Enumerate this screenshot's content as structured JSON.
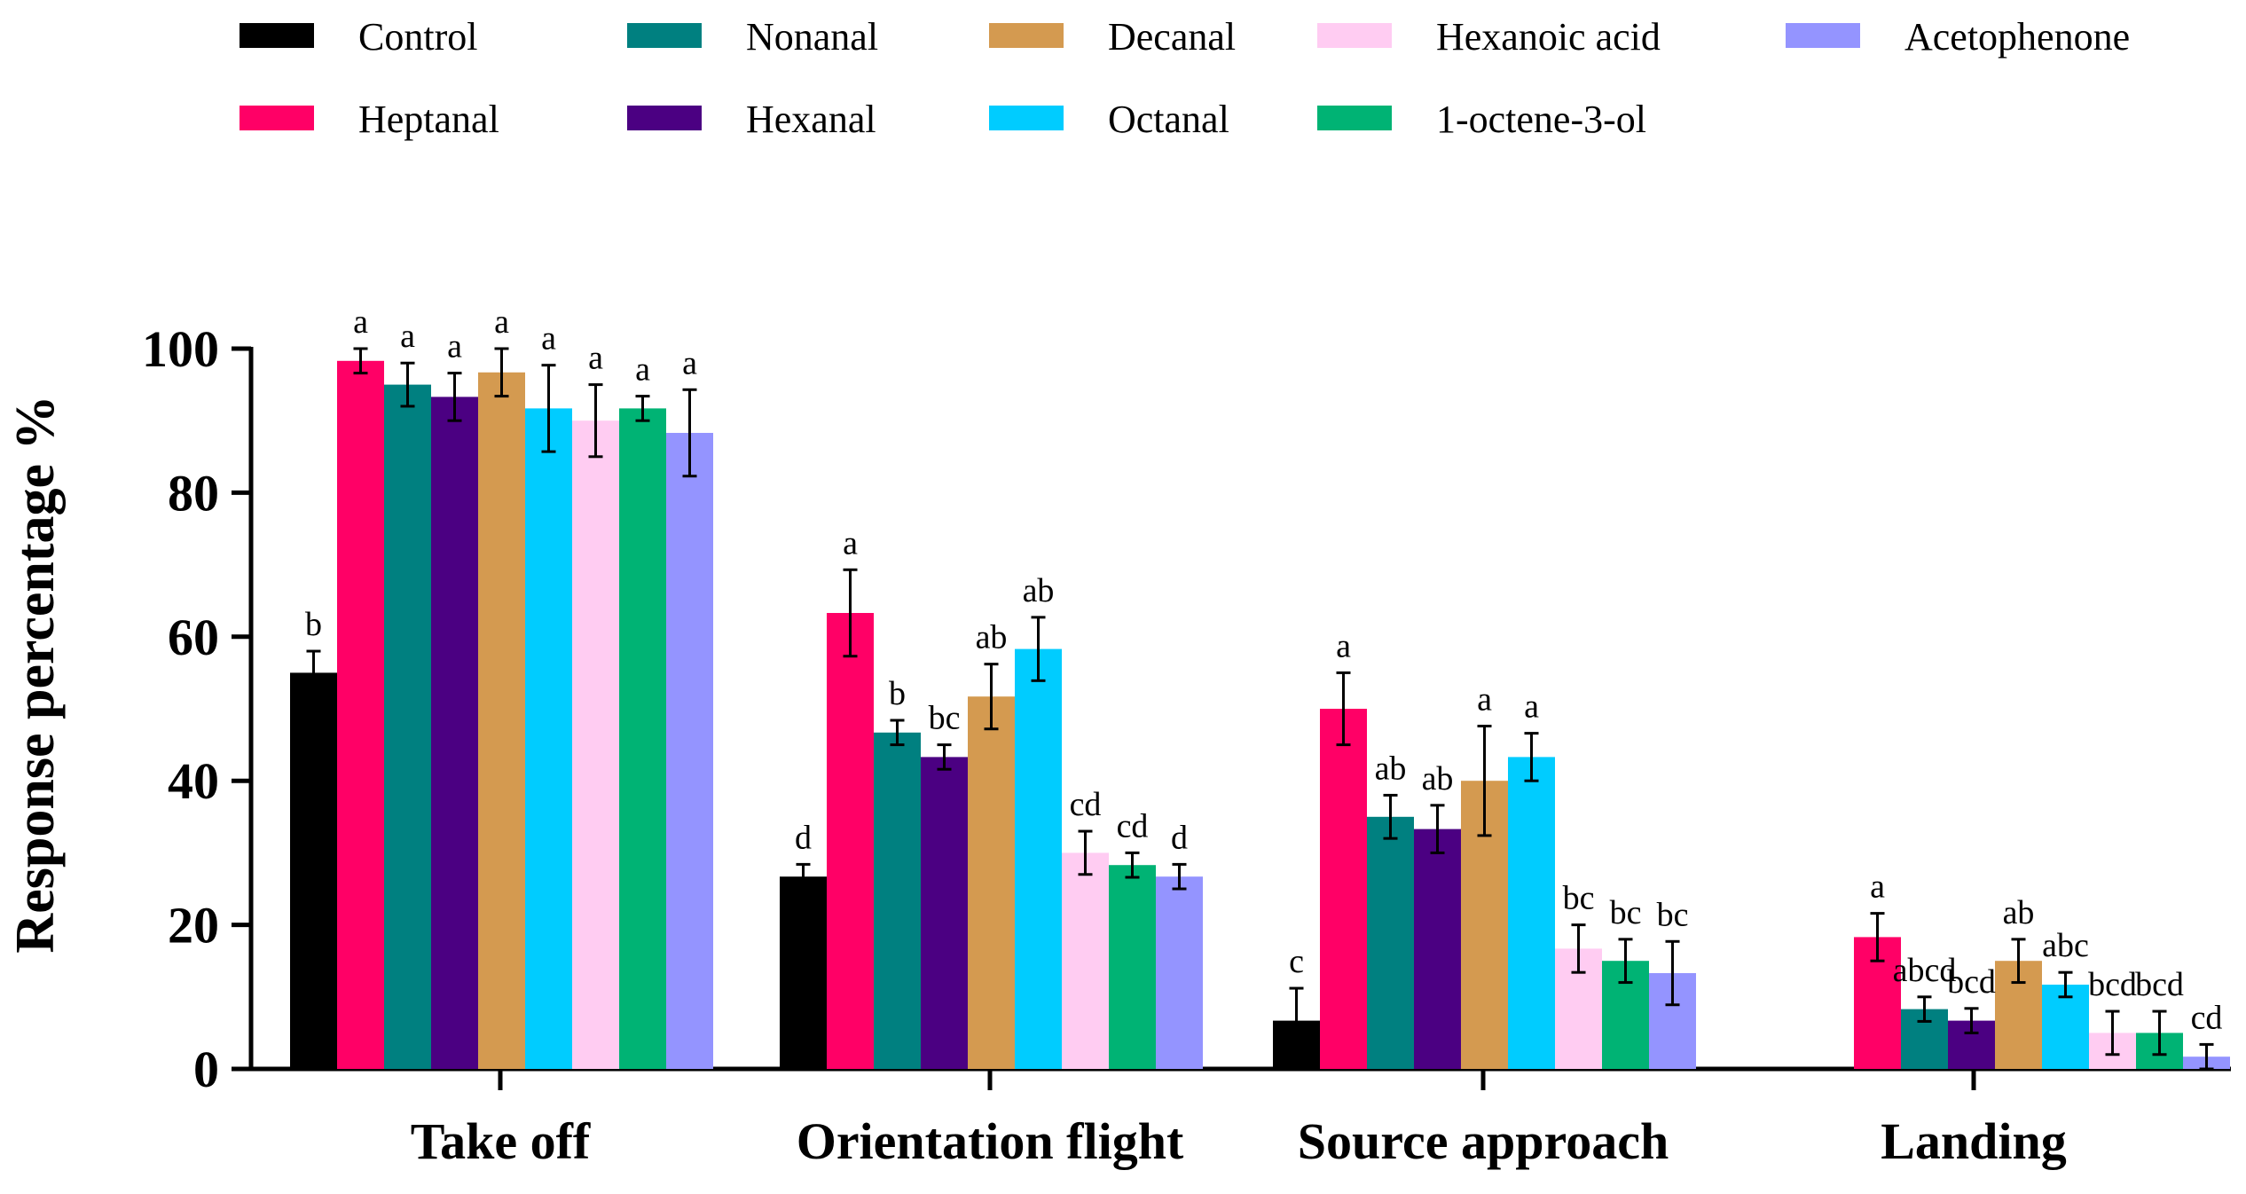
{
  "chart_data": {
    "type": "bar",
    "title": "",
    "xlabel": "",
    "ylabel": "Response percentage %",
    "ylim": [
      0,
      100
    ],
    "yticks": [
      0,
      20,
      40,
      60,
      80,
      100
    ],
    "grid": false,
    "legend_position": "top",
    "categories": [
      "Take off",
      "Orientation flight",
      "Source approach",
      "Landing"
    ],
    "series": [
      {
        "name": "Control",
        "color": "#000000",
        "values": [
          55,
          26.7,
          6.7,
          0
        ],
        "errors": [
          3,
          1.7,
          4.5,
          0
        ],
        "labels": [
          "b",
          "d",
          "c",
          ""
        ]
      },
      {
        "name": "Heptanal",
        "color": "#FF0066",
        "values": [
          98.3,
          63.3,
          50,
          18.3
        ],
        "errors": [
          1.7,
          6,
          5,
          3.3
        ],
        "labels": [
          "a",
          "a",
          "a",
          "a"
        ]
      },
      {
        "name": "Nonanal",
        "color": "#008080",
        "values": [
          95,
          46.7,
          35,
          8.3
        ],
        "errors": [
          3,
          1.7,
          3,
          1.7
        ],
        "labels": [
          "a",
          "b",
          "ab",
          "abcd"
        ]
      },
      {
        "name": "Hexanal",
        "color": "#4B0082",
        "values": [
          93.3,
          43.3,
          33.3,
          6.7
        ],
        "errors": [
          3.3,
          1.7,
          3.3,
          1.7
        ],
        "labels": [
          "a",
          "bc",
          "ab",
          "bcd"
        ]
      },
      {
        "name": "Decanal",
        "color": "#D49A50",
        "values": [
          96.7,
          51.7,
          40,
          15
        ],
        "errors": [
          3.3,
          4.5,
          7.6,
          3
        ],
        "labels": [
          "a",
          "ab",
          "a",
          "ab"
        ]
      },
      {
        "name": "Octanal",
        "color": "#00CCFF",
        "values": [
          91.7,
          58.3,
          43.3,
          11.7
        ],
        "errors": [
          6,
          4.4,
          3.3,
          1.7
        ],
        "labels": [
          "a",
          "ab",
          "a",
          "abc"
        ]
      },
      {
        "name": "Hexanoic acid",
        "color": "#FFCCF2",
        "values": [
          90,
          30,
          16.7,
          5
        ],
        "errors": [
          5,
          3,
          3.3,
          3
        ],
        "labels": [
          "a",
          "cd",
          "bc",
          "bcd"
        ]
      },
      {
        "name": "1-octene-3-ol",
        "color": "#00B374",
        "values": [
          91.7,
          28.3,
          15,
          5
        ],
        "errors": [
          1.7,
          1.7,
          3,
          3
        ],
        "labels": [
          "a",
          "cd",
          "bc",
          "bcd"
        ]
      },
      {
        "name": "Acetophenone",
        "color": "#9494FF",
        "values": [
          88.3,
          26.7,
          13.3,
          1.7
        ],
        "errors": [
          6,
          1.7,
          4.4,
          1.7
        ],
        "labels": [
          "a",
          "d",
          "bc",
          "cd"
        ]
      }
    ]
  }
}
